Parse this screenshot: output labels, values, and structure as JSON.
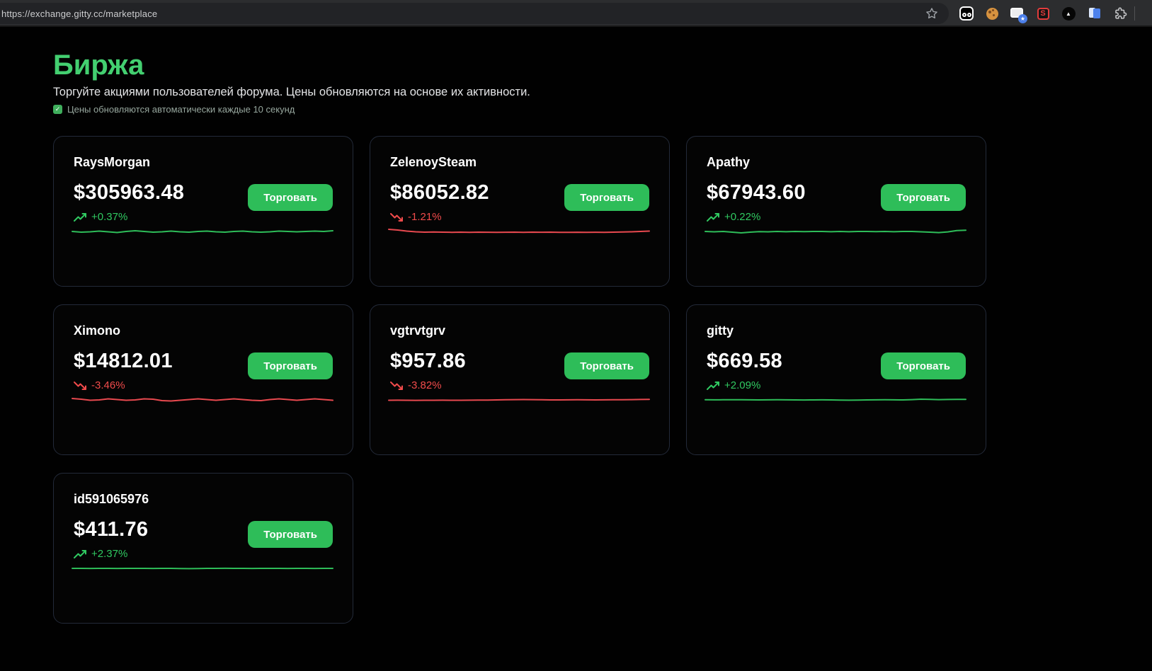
{
  "browser": {
    "url": "https://exchange.gitty.cc/marketplace",
    "glyphs": {
      "s_badge": "S",
      "star_badge": "★",
      "triangle": "▲",
      "check": "✓"
    },
    "icons": [
      "bookmark-star",
      "goggles-extension",
      "cookie",
      "window-star-extension",
      "s-extension",
      "triangle-circle-extension",
      "blue-book-extension",
      "puzzle-extensions-menu"
    ]
  },
  "page": {
    "title": "Биржа",
    "subtitle": "Торгуйте акциями пользователей форума. Цены обновляются на основе их активности.",
    "note": "Цены обновляются автоматически каждые 10 секунд"
  },
  "ui": {
    "trade_button_label": "Торговать"
  },
  "colors": {
    "title_green": "#43cf70",
    "percent_green": "#30c961",
    "percent_red": "#f14b4b",
    "line_green": "#2ebd59",
    "line_red": "#e8494f",
    "button_green": "#2ebd59",
    "card_border": "#232a39"
  },
  "cards": [
    {
      "name": "RaysMorgan",
      "price": "$305963.48",
      "change": "+0.37%",
      "direction": "up",
      "sparkline": [
        12,
        13,
        12.5,
        11.5,
        12.5,
        13.5,
        12,
        11,
        12,
        13,
        12.5,
        11.5,
        12.5,
        13,
        12,
        11.5,
        12.5,
        13,
        12,
        11.5,
        12.5,
        13,
        12.5,
        11.5,
        12,
        12.5,
        12,
        11.5,
        12,
        11
      ]
    },
    {
      "name": "ZelenoySteam",
      "price": "$86052.82",
      "change": "-1.21%",
      "direction": "down",
      "sparkline": [
        9,
        10,
        11.5,
        12.5,
        13,
        12.8,
        13,
        13.2,
        13,
        13.2,
        13,
        13.1,
        13.3,
        13.1,
        13,
        13.2,
        13,
        13.1,
        13,
        13.2,
        13.3,
        13.1,
        13.2,
        13.1,
        13.2,
        13,
        12.8,
        12.5,
        12,
        11.5
      ]
    },
    {
      "name": "Apathy",
      "price": "$67943.60",
      "change": "+0.22%",
      "direction": "up",
      "sparkline": [
        12,
        12.5,
        12,
        13,
        14,
        13,
        12.2,
        12.5,
        12,
        12.4,
        12,
        12.3,
        12,
        12,
        12.4,
        12,
        12.4,
        12,
        12,
        12.3,
        12,
        12.4,
        12,
        12,
        12.5,
        13,
        13.6,
        12.6,
        10.8,
        10.2
      ]
    },
    {
      "name": "Ximono",
      "price": "$14812.01",
      "change": "-3.46%",
      "direction": "down",
      "sparkline": [
        10,
        11,
        12.5,
        12,
        10.5,
        11.5,
        12.5,
        12,
        10.5,
        11,
        13,
        13.5,
        12.5,
        11.5,
        10.5,
        11.5,
        12.5,
        11.5,
        10.5,
        11.5,
        12.5,
        13,
        11.5,
        10.5,
        11.5,
        12.5,
        11.5,
        10.5,
        11.5,
        12.5
      ]
    },
    {
      "name": "vgtrvtgrv",
      "price": "$957.86",
      "change": "-3.82%",
      "direction": "down",
      "sparkline": [
        12.5,
        12.4,
        12.5,
        12.6,
        12.5,
        12.5,
        12.4,
        12.5,
        12.5,
        12.4,
        12.3,
        12.2,
        12,
        11.8,
        11.6,
        11.5,
        11.6,
        11.8,
        12,
        12,
        11.9,
        11.8,
        11.9,
        12,
        11.9,
        11.8,
        11.7,
        11.6,
        11.4,
        11.2
      ]
    },
    {
      "name": "gitty",
      "price": "$669.58",
      "change": "+2.09%",
      "direction": "up",
      "sparkline": [
        11.8,
        11.9,
        11.8,
        11.7,
        11.8,
        11.9,
        12,
        11.9,
        11.8,
        11.9,
        12,
        12.1,
        12,
        11.9,
        12,
        12.2,
        12.4,
        12.2,
        12,
        11.9,
        11.8,
        11.9,
        12,
        11.6,
        11,
        11.3,
        11.6,
        11.4,
        11.2,
        11.3
      ]
    },
    {
      "name": "id591065976",
      "price": "$411.76",
      "change": "+2.37%",
      "direction": "up",
      "sparkline": [
        12,
        12,
        12.1,
        12,
        12,
        12.1,
        12,
        12,
        12,
        12.1,
        12,
        12,
        12.2,
        12.4,
        12.2,
        12,
        12,
        11.9,
        12,
        12,
        12.1,
        12,
        12,
        12,
        12.1,
        12,
        12,
        12.1,
        12,
        12
      ]
    }
  ]
}
